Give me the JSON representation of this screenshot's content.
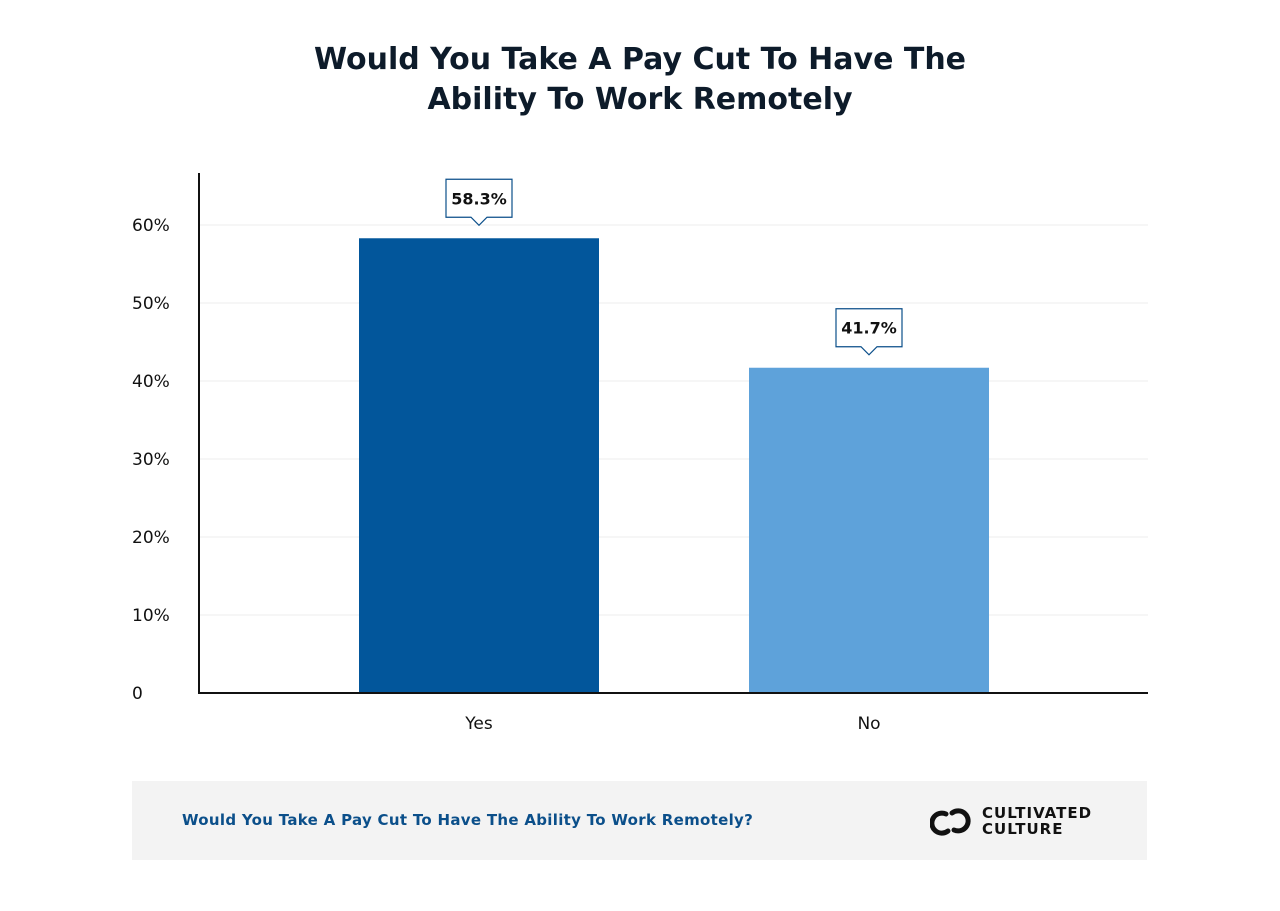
{
  "title_lines": [
    "Would You Take A Pay Cut To Have The",
    "Ability To Work Remotely"
  ],
  "chart_data": {
    "type": "bar",
    "title": "Would You Take A Pay Cut To Have The Ability To Work Remotely",
    "categories": [
      "Yes",
      "No"
    ],
    "values": [
      58.3,
      41.7
    ],
    "value_labels": [
      "58.3%",
      "41.7%"
    ],
    "bar_colors": [
      "#02569b",
      "#5ea2da"
    ],
    "ylim": [
      0,
      66
    ],
    "yticks": [
      0,
      10,
      20,
      30,
      40,
      50,
      60
    ],
    "ytick_labels": [
      "0",
      "10%",
      "20%",
      "30%",
      "40%",
      "50%",
      "60%"
    ],
    "xlabel": "",
    "ylabel": "",
    "grid": true,
    "legend": "none"
  },
  "footer": {
    "caption": "Would You Take A Pay Cut To Have The Ability To Work Remotely?",
    "brand_line1": "CULTIVATED",
    "brand_line2": "CULTURE"
  },
  "colors": {
    "title": "#0d1b2a",
    "caption": "#0b4f8a",
    "footer_bg": "#f3f3f3",
    "label_border": "#0b4f8a"
  }
}
